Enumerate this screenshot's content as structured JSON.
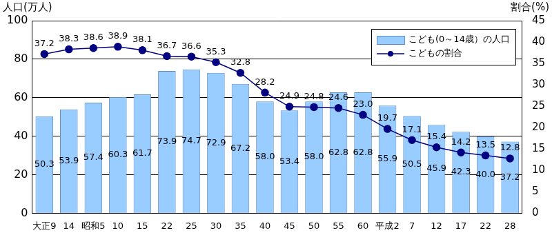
{
  "chart_data": {
    "type": "bar",
    "ylabel": "人口(万人)",
    "y2label": "割合(%)",
    "categories": [
      "大正9",
      "14",
      "昭和5",
      "10",
      "15",
      "22",
      "25",
      "30",
      "35",
      "40",
      "45",
      "50",
      "55",
      "60",
      "平成2",
      "7",
      "12",
      "17",
      "22",
      "28"
    ],
    "series": [
      {
        "name": "こども(0～14歳）の人口",
        "type": "bar",
        "color": "#99ccff",
        "values": [
          50.3,
          53.9,
          57.4,
          60.3,
          61.7,
          73.9,
          74.7,
          72.9,
          67.2,
          58.0,
          53.4,
          58.0,
          62.8,
          62.8,
          55.9,
          50.5,
          45.9,
          42.3,
          40.0,
          37.2
        ],
        "value_labels": [
          "50.3",
          "53.9",
          "57.4",
          "60.3",
          "61.7",
          "73.9",
          "74.7",
          "72.9",
          "67.2",
          "58.0",
          "53.4",
          "58.0",
          "62.8",
          "62.8",
          "55.9",
          "50.5",
          "45.9",
          "42.3",
          "40.0",
          "37.2"
        ]
      },
      {
        "name": "こどもの割合",
        "type": "line",
        "axis": "y2",
        "color": "#000080",
        "marker": "circle",
        "values": [
          37.2,
          38.3,
          38.6,
          38.9,
          38.1,
          36.7,
          36.6,
          35.3,
          32.8,
          28.2,
          24.9,
          24.8,
          24.6,
          23.0,
          19.7,
          17.1,
          15.4,
          14.2,
          13.5,
          12.8
        ],
        "value_labels": [
          "37.2",
          "38.3",
          "38.6",
          "38.9",
          "38.1",
          "36.7",
          "36.6",
          "35.3",
          "32.8",
          "28.2",
          "24.9",
          "24.8",
          "24.6",
          "23.0",
          "19.7",
          "17.1",
          "15.4",
          "14.2",
          "13.5",
          "12.8"
        ]
      }
    ],
    "ylim": [
      0,
      100
    ],
    "yticks": [
      0,
      20,
      40,
      60,
      80,
      100
    ],
    "y2lim": [
      0,
      45
    ],
    "y2ticks": [
      0,
      5,
      10,
      15,
      20,
      25,
      30,
      35,
      40,
      45
    ],
    "grid": true,
    "legend": "top-right",
    "data_labels": true
  }
}
